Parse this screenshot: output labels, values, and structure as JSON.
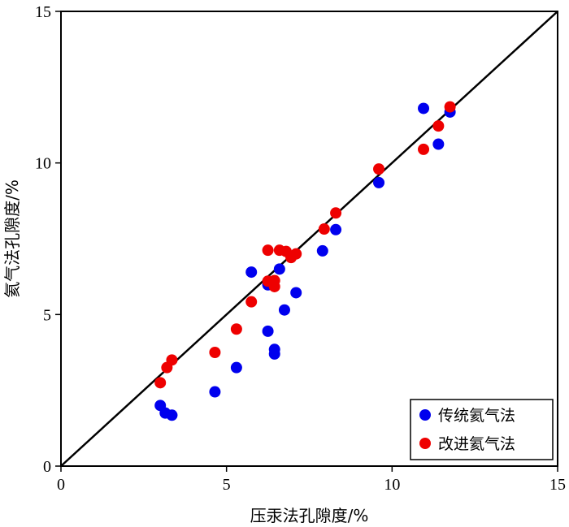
{
  "chart_data": {
    "type": "scatter",
    "xlabel": "压汞法孔隙度/%",
    "ylabel": "氦气法孔隙度/%",
    "xlim": [
      0,
      15
    ],
    "ylim": [
      0,
      15
    ],
    "xticks": [
      "0",
      "5",
      "10",
      "15"
    ],
    "yticks": [
      "0",
      "5",
      "10",
      "15"
    ],
    "grid": false,
    "legend_position": "bottom-right",
    "reference_line": {
      "from": [
        0,
        0
      ],
      "to": [
        15,
        15
      ],
      "color": "#000000"
    },
    "series": [
      {
        "name": "传统氦气法",
        "color": "#0000ee",
        "points": [
          [
            3.0,
            2.0
          ],
          [
            3.15,
            1.75
          ],
          [
            3.35,
            1.68
          ],
          [
            4.65,
            2.45
          ],
          [
            5.3,
            3.25
          ],
          [
            5.75,
            6.4
          ],
          [
            6.25,
            5.98
          ],
          [
            6.25,
            4.45
          ],
          [
            6.45,
            3.85
          ],
          [
            6.45,
            3.7
          ],
          [
            6.6,
            6.5
          ],
          [
            6.75,
            5.15
          ],
          [
            7.1,
            5.72
          ],
          [
            7.9,
            7.1
          ],
          [
            8.3,
            7.8
          ],
          [
            9.6,
            9.35
          ],
          [
            10.95,
            11.8
          ],
          [
            11.4,
            10.62
          ],
          [
            11.75,
            11.68
          ]
        ]
      },
      {
        "name": "改进氦气法",
        "color": "#ee0000",
        "points": [
          [
            3.0,
            2.75
          ],
          [
            3.2,
            3.25
          ],
          [
            3.35,
            3.5
          ],
          [
            4.65,
            3.75
          ],
          [
            5.3,
            4.52
          ],
          [
            5.75,
            5.42
          ],
          [
            6.25,
            6.1
          ],
          [
            6.25,
            7.12
          ],
          [
            6.45,
            6.12
          ],
          [
            6.45,
            5.92
          ],
          [
            6.6,
            7.12
          ],
          [
            6.8,
            7.08
          ],
          [
            6.95,
            6.88
          ],
          [
            7.1,
            7.0
          ],
          [
            7.95,
            7.82
          ],
          [
            8.3,
            8.35
          ],
          [
            9.6,
            9.8
          ],
          [
            10.95,
            10.45
          ],
          [
            11.4,
            11.22
          ],
          [
            11.75,
            11.85
          ]
        ]
      }
    ]
  }
}
